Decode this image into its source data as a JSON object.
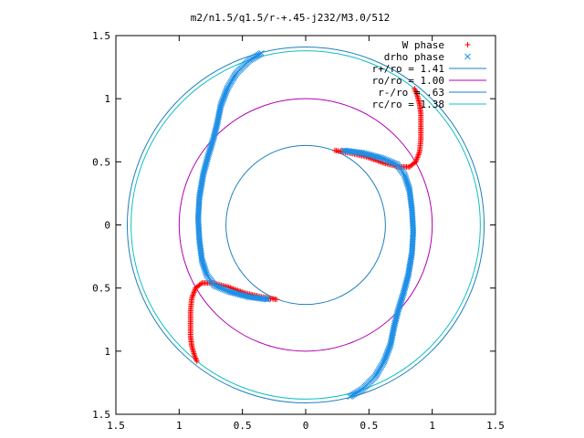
{
  "chart_data": {
    "type": "scatter",
    "title": "m2/n1.5/q1.5/r-+.45-j232/M3.0/512",
    "xlim": [
      -1.5,
      1.5
    ],
    "ylim": [
      -1.5,
      1.5
    ],
    "x_ticks": [
      {
        "v": -1.5,
        "label": "1.5"
      },
      {
        "v": -1.0,
        "label": "1"
      },
      {
        "v": -0.5,
        "label": "0.5"
      },
      {
        "v": 0,
        "label": "0"
      },
      {
        "v": 0.5,
        "label": "0.5"
      },
      {
        "v": 1.0,
        "label": "1"
      },
      {
        "v": 1.5,
        "label": "1.5"
      }
    ],
    "y_ticks": [
      {
        "v": 1.5,
        "label": "1.5"
      },
      {
        "v": 1.0,
        "label": "1"
      },
      {
        "v": 0.5,
        "label": "0.5"
      },
      {
        "v": 0,
        "label": "0"
      },
      {
        "v": -0.5,
        "label": "0.5"
      },
      {
        "v": -1.0,
        "label": "1"
      },
      {
        "v": -1.5,
        "label": "1.5"
      }
    ],
    "grid": false,
    "legend_position": "top-right",
    "circles": [
      {
        "name": "r+/ro = 1.41",
        "r": 1.41,
        "color": "#1f7fbf"
      },
      {
        "name": "ro/ro = 1.00",
        "r": 1.0,
        "color": "#b000b0"
      },
      {
        "name": "r-/ro = .63",
        "r": 0.63,
        "color": "#1f7fbf"
      },
      {
        "name": "rc/ro = 1.38",
        "r": 1.38,
        "color": "#10c0c0"
      }
    ],
    "series": [
      {
        "name": "W phase",
        "marker": "plus",
        "color": "#ff0000",
        "arms": [
          [
            [
              0.23,
              0.59
            ],
            [
              0.35,
              0.57
            ],
            [
              0.48,
              0.54
            ],
            [
              0.62,
              0.49
            ],
            [
              0.74,
              0.46
            ],
            [
              0.82,
              0.46
            ],
            [
              0.87,
              0.5
            ],
            [
              0.9,
              0.58
            ],
            [
              0.91,
              0.68
            ],
            [
              0.91,
              0.78
            ],
            [
              0.91,
              0.88
            ],
            [
              0.9,
              0.96
            ],
            [
              0.88,
              1.03
            ],
            [
              0.86,
              1.08
            ]
          ],
          [
            [
              -0.23,
              -0.59
            ],
            [
              -0.35,
              -0.57
            ],
            [
              -0.48,
              -0.54
            ],
            [
              -0.62,
              -0.49
            ],
            [
              -0.74,
              -0.46
            ],
            [
              -0.82,
              -0.46
            ],
            [
              -0.87,
              -0.5
            ],
            [
              -0.9,
              -0.58
            ],
            [
              -0.91,
              -0.68
            ],
            [
              -0.91,
              -0.78
            ],
            [
              -0.91,
              -0.88
            ],
            [
              -0.9,
              -0.96
            ],
            [
              -0.88,
              -1.03
            ],
            [
              -0.86,
              -1.08
            ]
          ]
        ]
      },
      {
        "name": "drho phase",
        "marker": "cross",
        "color": "#1e8fe6",
        "arms": [
          [
            [
              -0.35,
              1.36
            ],
            [
              -0.45,
              1.3
            ],
            [
              -0.55,
              1.2
            ],
            [
              -0.62,
              1.08
            ],
            [
              -0.67,
              0.95
            ],
            [
              -0.7,
              0.8
            ],
            [
              -0.73,
              0.68
            ],
            [
              -0.77,
              0.55
            ],
            [
              -0.81,
              0.4
            ],
            [
              -0.84,
              0.22
            ],
            [
              -0.85,
              0.05
            ],
            [
              -0.84,
              -0.12
            ],
            [
              -0.82,
              -0.28
            ],
            [
              -0.78,
              -0.4
            ],
            [
              -0.72,
              -0.48
            ],
            [
              -0.6,
              -0.53
            ],
            [
              -0.45,
              -0.57
            ],
            [
              -0.3,
              -0.59
            ]
          ],
          [
            [
              0.35,
              -1.36
            ],
            [
              0.45,
              -1.3
            ],
            [
              0.55,
              -1.2
            ],
            [
              0.62,
              -1.08
            ],
            [
              0.67,
              -0.95
            ],
            [
              0.7,
              -0.8
            ],
            [
              0.73,
              -0.68
            ],
            [
              0.77,
              -0.55
            ],
            [
              0.81,
              -0.4
            ],
            [
              0.84,
              -0.22
            ],
            [
              0.85,
              -0.05
            ],
            [
              0.84,
              0.12
            ],
            [
              0.82,
              0.28
            ],
            [
              0.78,
              0.4
            ],
            [
              0.72,
              0.48
            ],
            [
              0.6,
              0.53
            ],
            [
              0.45,
              0.57
            ],
            [
              0.3,
              0.59
            ]
          ]
        ]
      }
    ]
  }
}
